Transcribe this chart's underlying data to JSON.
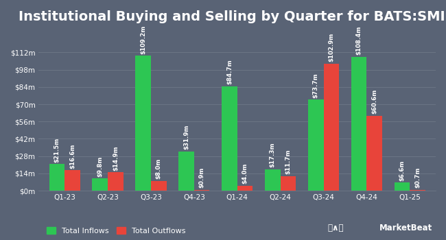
{
  "title": "Institutional Buying and Selling by Quarter for BATS:SMIN",
  "categories": [
    "Q1-23",
    "Q2-23",
    "Q3-23",
    "Q4-23",
    "Q1-24",
    "Q2-24",
    "Q3-24",
    "Q4-24",
    "Q1-25"
  ],
  "inflows": [
    21.5,
    9.8,
    109.2,
    31.9,
    84.7,
    17.3,
    73.7,
    108.4,
    6.6
  ],
  "outflows": [
    16.6,
    14.9,
    8.0,
    0.9,
    4.0,
    11.7,
    102.9,
    60.6,
    0.7
  ],
  "inflow_labels": [
    "$21.5m",
    "$9.8m",
    "$109.2m",
    "$31.9m",
    "$84.7m",
    "$17.3m",
    "$73.7m",
    "$108.4m",
    "$6.6m"
  ],
  "outflow_labels": [
    "$16.6m",
    "$14.9m",
    "$8.0m",
    "$0.9m",
    "$4.0m",
    "$11.7m",
    "$102.9m",
    "$60.6m",
    "$0.7m"
  ],
  "inflow_color": "#2dc653",
  "outflow_color": "#e8443a",
  "background_color": "#596375",
  "plot_bg_color": "#596375",
  "grid_color": "#6b7585",
  "text_color": "#ffffff",
  "yticks": [
    0,
    14,
    28,
    42,
    56,
    70,
    84,
    98,
    112
  ],
  "ytick_labels": [
    "$0m",
    "$14m",
    "$28m",
    "$42m",
    "$56m",
    "$70m",
    "$84m",
    "$98m",
    "$112m"
  ],
  "ylim": [
    0,
    130
  ],
  "bar_width": 0.36,
  "legend_inflow": "Total Inflows",
  "legend_outflow": "Total Outflows",
  "title_fontsize": 14,
  "label_fontsize": 6.2,
  "tick_fontsize": 7.5,
  "legend_fontsize": 8
}
